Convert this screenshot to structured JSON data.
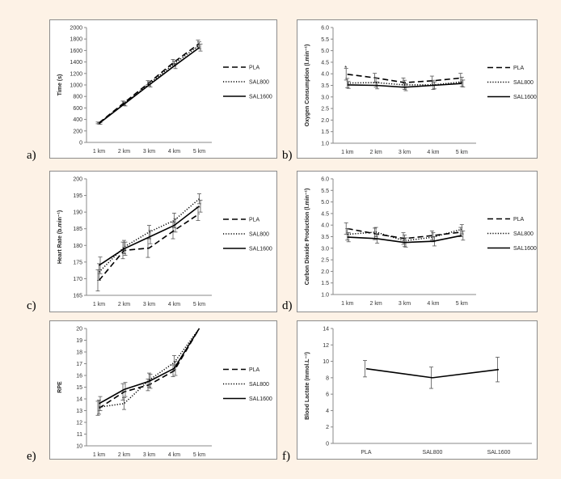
{
  "panel_labels": [
    "a)",
    "b)",
    "c)",
    "d)",
    "e)",
    "f)"
  ],
  "colors": {
    "background": "#fdf2e6",
    "panel": "#ffffff",
    "line": "#000000"
  },
  "chart_data": [
    {
      "type": "line",
      "categories": [
        "1 km",
        "2 km",
        "3 km",
        "4 km",
        "5 km"
      ],
      "ylabel": "Time (s)",
      "ylim": [
        0,
        2000
      ],
      "ystep": 200,
      "legend": "right",
      "series": [
        {
          "name": "PLA",
          "style": "dashed",
          "values": [
            340,
            690,
            1040,
            1400,
            1720
          ],
          "err": [
            15,
            30,
            35,
            45,
            60
          ]
        },
        {
          "name": "SAL800",
          "style": "dotted",
          "values": [
            335,
            675,
            1020,
            1370,
            1690
          ],
          "err": [
            15,
            30,
            35,
            45,
            60
          ]
        },
        {
          "name": "SAL1600",
          "style": "solid",
          "values": [
            330,
            665,
            1000,
            1330,
            1650
          ],
          "err": [
            15,
            30,
            35,
            45,
            60
          ]
        }
      ]
    },
    {
      "type": "line",
      "categories": [
        "1 km",
        "2 km",
        "3 km",
        "4 km",
        "5 km"
      ],
      "ylabel": "Oxygen Consumption (l.min⁻¹)",
      "ylim": [
        1.0,
        6.0
      ],
      "ystep": 0.5,
      "legend": "right",
      "annotations": [
        {
          "text": "*",
          "category": "1 km",
          "y": 4.25
        }
      ],
      "series": [
        {
          "name": "PLA",
          "style": "dashed",
          "values": [
            3.98,
            3.82,
            3.62,
            3.7,
            3.82
          ],
          "err": [
            0.25,
            0.2,
            0.2,
            0.2,
            0.2
          ]
        },
        {
          "name": "SAL800",
          "style": "dotted",
          "values": [
            3.6,
            3.62,
            3.52,
            3.52,
            3.65
          ],
          "err": [
            0.2,
            0.2,
            0.2,
            0.2,
            0.2
          ]
        },
        {
          "name": "SAL1600",
          "style": "solid",
          "values": [
            3.52,
            3.5,
            3.42,
            3.5,
            3.58
          ],
          "err": [
            0.15,
            0.15,
            0.15,
            0.15,
            0.15
          ]
        }
      ]
    },
    {
      "type": "line",
      "categories": [
        "1 km",
        "2 km",
        "3 km",
        "4 km",
        "5 km"
      ],
      "ylabel": "Heart Rate (b.min⁻¹)",
      "ylim": [
        165,
        200
      ],
      "ystep": 5,
      "legend": "right",
      "series": [
        {
          "name": "PLA",
          "style": "dashed",
          "values": [
            169.5,
            178.5,
            179.2,
            184.5,
            189.5
          ],
          "err": [
            3.2,
            2.5,
            2.8,
            2.5,
            2.0
          ]
        },
        {
          "name": "SAL800",
          "style": "dotted",
          "values": [
            172.0,
            179.5,
            184.0,
            187.5,
            194.0
          ],
          "err": [
            2.5,
            2.0,
            2.0,
            2.2,
            1.5
          ]
        },
        {
          "name": "SAL1600",
          "style": "solid",
          "values": [
            174.0,
            179.0,
            182.5,
            186.0,
            191.8
          ],
          "err": [
            2.5,
            2.0,
            2.0,
            2.0,
            1.8
          ]
        }
      ]
    },
    {
      "type": "line",
      "categories": [
        "1 km",
        "2 km",
        "3 km",
        "4 km",
        "5 km"
      ],
      "ylabel": "Carbon Dioxide Production (l.min⁻¹)",
      "ylim": [
        1.0,
        6.0
      ],
      "ystep": 0.5,
      "legend": "right",
      "series": [
        {
          "name": "PLA",
          "style": "dashed",
          "values": [
            3.85,
            3.62,
            3.42,
            3.55,
            3.7
          ],
          "err": [
            0.25,
            0.25,
            0.25,
            0.2,
            0.2
          ]
        },
        {
          "name": "SAL800",
          "style": "dotted",
          "values": [
            3.6,
            3.7,
            3.32,
            3.48,
            3.82
          ],
          "err": [
            0.25,
            0.2,
            0.25,
            0.2,
            0.2
          ]
        },
        {
          "name": "SAL1600",
          "style": "solid",
          "values": [
            3.48,
            3.42,
            3.25,
            3.3,
            3.55
          ],
          "err": [
            0.2,
            0.2,
            0.2,
            0.2,
            0.2
          ]
        }
      ]
    },
    {
      "type": "line",
      "categories": [
        "1 km",
        "2 km",
        "3 km",
        "4 km",
        "5 km"
      ],
      "ylabel": "RPE",
      "ylim": [
        10,
        20
      ],
      "ystep": 1,
      "legend": "right",
      "series": [
        {
          "name": "PLA",
          "style": "dashed",
          "values": [
            13.2,
            14.6,
            15.2,
            16.4,
            20.0
          ],
          "err": [
            0.6,
            0.7,
            0.5,
            0.5,
            0
          ]
        },
        {
          "name": "SAL800",
          "style": "dotted",
          "values": [
            13.3,
            13.6,
            15.6,
            17.1,
            20.0
          ],
          "err": [
            0.6,
            0.5,
            0.6,
            0.6,
            0
          ]
        },
        {
          "name": "SAL1600",
          "style": "solid",
          "values": [
            13.6,
            14.8,
            15.5,
            16.6,
            20.0
          ],
          "err": [
            0.6,
            0.6,
            0.6,
            0.6,
            0
          ]
        }
      ]
    },
    {
      "type": "line",
      "categories": [
        "PLA",
        "SAL800",
        "SAL1600"
      ],
      "ylabel": "Blood Lactate (mmol.L⁻¹)",
      "ylim": [
        0,
        14
      ],
      "ystep": 2,
      "series": [
        {
          "style": "solid",
          "values": [
            9.1,
            8.0,
            9.0
          ],
          "err": [
            1.0,
            1.3,
            1.5
          ]
        }
      ]
    }
  ]
}
